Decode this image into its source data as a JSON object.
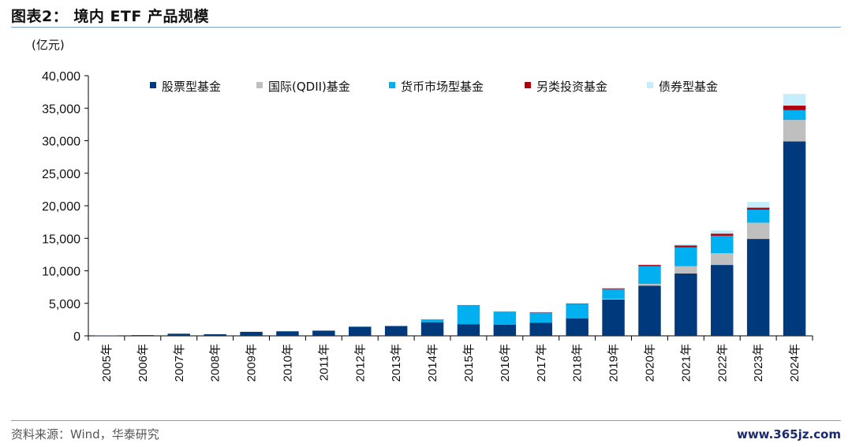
{
  "header": {
    "title": "图表2：  境内 ETF 产品规模"
  },
  "footer": {
    "source": "资料来源：Wind，华泰研究",
    "watermark": "www.365jz.com"
  },
  "colors": {
    "rule": "#7ea3c8"
  },
  "chart_data": {
    "type": "bar",
    "stacked": true,
    "unit_label": "(亿元)",
    "ylim": [
      0,
      40000
    ],
    "yticks": [
      0,
      5000,
      10000,
      15000,
      20000,
      25000,
      30000,
      35000,
      40000
    ],
    "ytick_labels": [
      "0",
      "5,000",
      "10,000",
      "15,000",
      "20,000",
      "25,000",
      "30,000",
      "35,000",
      "40,000"
    ],
    "legend_position": "top",
    "grid": false,
    "categories": [
      "2005年",
      "2006年",
      "2007年",
      "2008年",
      "2009年",
      "2010年",
      "2011年",
      "2012年",
      "2013年",
      "2014年",
      "2015年",
      "2016年",
      "2017年",
      "2018年",
      "2019年",
      "2020年",
      "2021年",
      "2022年",
      "2023年",
      "2024年"
    ],
    "series": [
      {
        "name": "股票型基金",
        "color": "#003a7d",
        "values": [
          50,
          110,
          330,
          250,
          620,
          700,
          800,
          1450,
          1500,
          2100,
          1800,
          1700,
          2000,
          2700,
          5600,
          7700,
          9600,
          10900,
          14900,
          29900
        ]
      },
      {
        "name": "国际(QDII)基金",
        "color": "#bfbfbf",
        "values": [
          0,
          0,
          0,
          0,
          0,
          0,
          0,
          0,
          0,
          0,
          0,
          0,
          0,
          0,
          100,
          300,
          1100,
          1800,
          2500,
          3300
        ]
      },
      {
        "name": "货币市场型基金",
        "color": "#00b0f0",
        "values": [
          0,
          0,
          0,
          0,
          0,
          0,
          0,
          0,
          0,
          400,
          2900,
          2000,
          1600,
          2200,
          1500,
          2700,
          2900,
          2700,
          2000,
          1500
        ]
      },
      {
        "name": "另类投资基金",
        "color": "#b0000e",
        "values": [
          0,
          0,
          0,
          0,
          0,
          0,
          0,
          0,
          50,
          30,
          20,
          30,
          30,
          80,
          120,
          200,
          300,
          300,
          300,
          700
        ]
      },
      {
        "name": "债券型基金",
        "color": "#c5eefa",
        "values": [
          0,
          0,
          0,
          0,
          0,
          0,
          0,
          20,
          30,
          40,
          50,
          50,
          50,
          50,
          50,
          100,
          200,
          500,
          900,
          1800
        ]
      }
    ]
  }
}
